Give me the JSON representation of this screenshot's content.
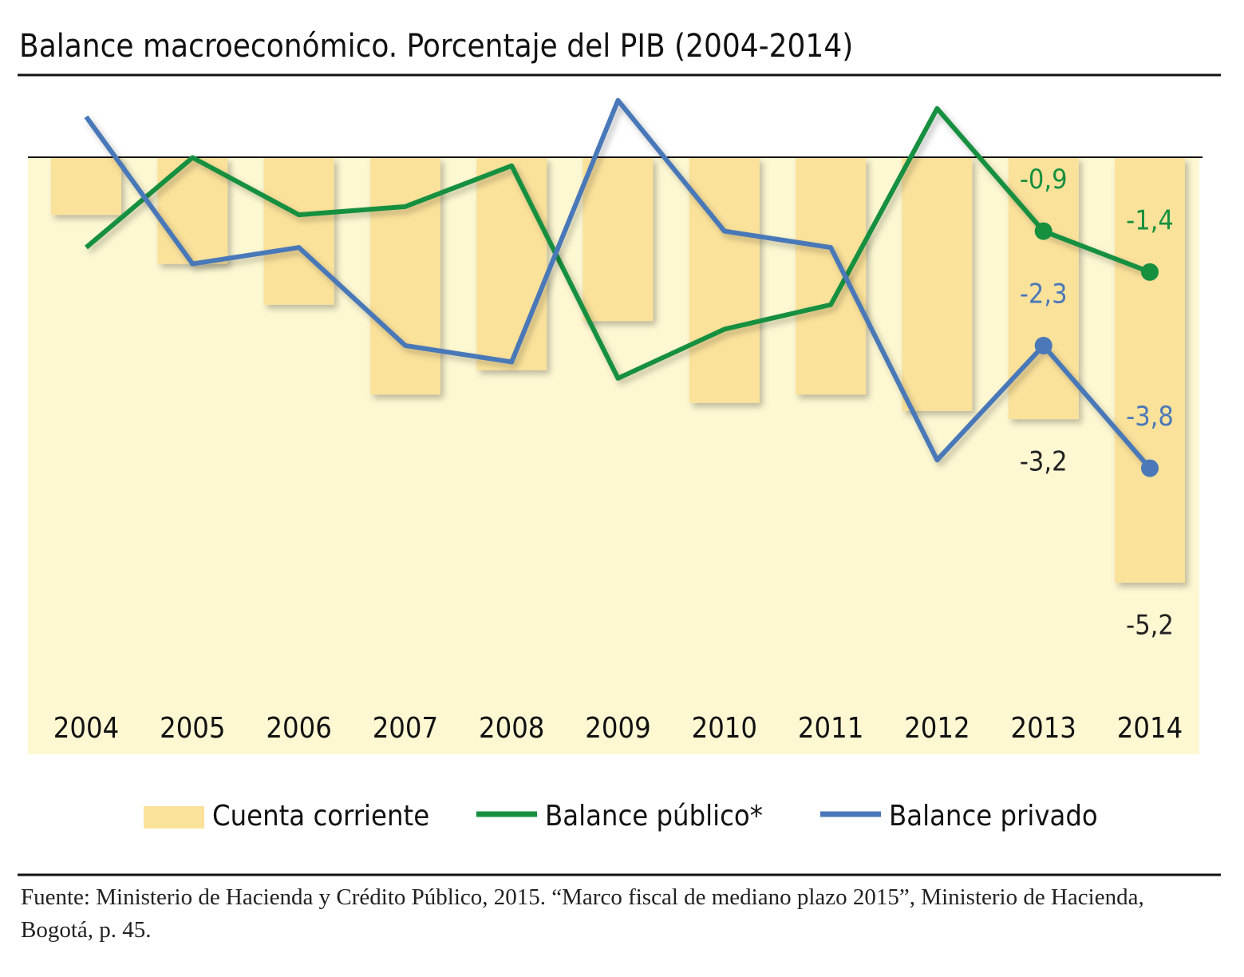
{
  "chart_data": {
    "type": "bar_line",
    "title": "Balance macroeconómico. Porcentaje del PIB (2004-2014)",
    "categories": [
      "2004",
      "2005",
      "2006",
      "2007",
      "2008",
      "2009",
      "2010",
      "2011",
      "2012",
      "2013",
      "2014"
    ],
    "ylim": [
      -7.3,
      1.0
    ],
    "series": [
      {
        "name": "Cuenta corriente",
        "kind": "bar",
        "color": "#fbe29b",
        "values": [
          -0.7,
          -1.3,
          -1.8,
          -2.9,
          -2.6,
          -2.0,
          -3.0,
          -2.9,
          -3.1,
          -3.2,
          -5.2
        ],
        "value_labels": [
          null,
          null,
          null,
          null,
          null,
          null,
          null,
          null,
          null,
          "-3,2",
          "-5,2"
        ],
        "label_color": "#222222"
      },
      {
        "name": "Balance público*",
        "kind": "line",
        "color": "#16903f",
        "values": [
          -1.1,
          0.0,
          -0.7,
          -0.6,
          -0.1,
          -2.7,
          -2.1,
          -1.8,
          0.6,
          -0.9,
          -1.4
        ],
        "value_labels": [
          null,
          null,
          null,
          null,
          null,
          null,
          null,
          null,
          null,
          "-0,9",
          "-1,4"
        ],
        "label_color": "#16903f"
      },
      {
        "name": "Balance privado",
        "kind": "line",
        "color": "#4a78b8",
        "values": [
          0.5,
          -1.3,
          -1.1,
          -2.3,
          -2.5,
          0.7,
          -0.9,
          -1.1,
          -3.7,
          -2.3,
          -3.8
        ],
        "value_labels": [
          null,
          null,
          null,
          null,
          null,
          null,
          null,
          null,
          null,
          "-2,3",
          "-3,8"
        ],
        "label_color": "#4a78b8"
      }
    ],
    "source": "Fuente: Ministerio de Hacienda y Crédito Público, 2015. “Marco fiscal de mediano plazo 2015”, Ministerio de Hacienda, Bogotá, p. 45."
  }
}
